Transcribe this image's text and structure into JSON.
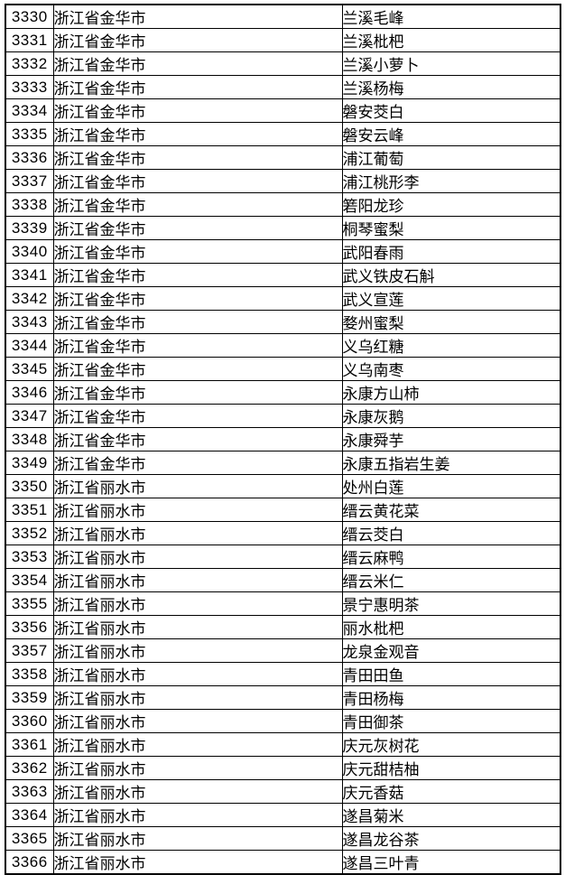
{
  "colors": {
    "background": "#ffffff",
    "border": "#000000",
    "text": "#000000"
  },
  "table": {
    "rows": [
      {
        "no": "3330",
        "region": "浙江省金华市",
        "product": "兰溪毛峰"
      },
      {
        "no": "3331",
        "region": "浙江省金华市",
        "product": "兰溪枇杷"
      },
      {
        "no": "3332",
        "region": "浙江省金华市",
        "product": "兰溪小萝卜"
      },
      {
        "no": "3333",
        "region": "浙江省金华市",
        "product": "兰溪杨梅"
      },
      {
        "no": "3334",
        "region": "浙江省金华市",
        "product": "磐安茭白"
      },
      {
        "no": "3335",
        "region": "浙江省金华市",
        "product": "磐安云峰"
      },
      {
        "no": "3336",
        "region": "浙江省金华市",
        "product": "浦江葡萄"
      },
      {
        "no": "3337",
        "region": "浙江省金华市",
        "product": "浦江桃形李"
      },
      {
        "no": "3338",
        "region": "浙江省金华市",
        "product": "箬阳龙珍"
      },
      {
        "no": "3339",
        "region": "浙江省金华市",
        "product": "桐琴蜜梨"
      },
      {
        "no": "3340",
        "region": "浙江省金华市",
        "product": "武阳春雨"
      },
      {
        "no": "3341",
        "region": "浙江省金华市",
        "product": "武义铁皮石斛"
      },
      {
        "no": "3342",
        "region": "浙江省金华市",
        "product": "武义宣莲"
      },
      {
        "no": "3343",
        "region": "浙江省金华市",
        "product": "婺州蜜梨"
      },
      {
        "no": "3344",
        "region": "浙江省金华市",
        "product": "义乌红糖"
      },
      {
        "no": "3345",
        "region": "浙江省金华市",
        "product": "义乌南枣"
      },
      {
        "no": "3346",
        "region": "浙江省金华市",
        "product": "永康方山柿"
      },
      {
        "no": "3347",
        "region": "浙江省金华市",
        "product": "永康灰鹅"
      },
      {
        "no": "3348",
        "region": "浙江省金华市",
        "product": "永康舜芋"
      },
      {
        "no": "3349",
        "region": "浙江省金华市",
        "product": "永康五指岩生姜"
      },
      {
        "no": "3350",
        "region": "浙江省丽水市",
        "product": "处州白莲"
      },
      {
        "no": "3351",
        "region": "浙江省丽水市",
        "product": "缙云黄花菜"
      },
      {
        "no": "3352",
        "region": "浙江省丽水市",
        "product": "缙云茭白"
      },
      {
        "no": "3353",
        "region": "浙江省丽水市",
        "product": "缙云麻鸭"
      },
      {
        "no": "3354",
        "region": "浙江省丽水市",
        "product": "缙云米仁"
      },
      {
        "no": "3355",
        "region": "浙江省丽水市",
        "product": "景宁惠明茶"
      },
      {
        "no": "3356",
        "region": "浙江省丽水市",
        "product": "丽水枇杷"
      },
      {
        "no": "3357",
        "region": "浙江省丽水市",
        "product": "龙泉金观音"
      },
      {
        "no": "3358",
        "region": "浙江省丽水市",
        "product": "青田田鱼"
      },
      {
        "no": "3359",
        "region": "浙江省丽水市",
        "product": "青田杨梅"
      },
      {
        "no": "3360",
        "region": "浙江省丽水市",
        "product": "青田御茶"
      },
      {
        "no": "3361",
        "region": "浙江省丽水市",
        "product": "庆元灰树花"
      },
      {
        "no": "3362",
        "region": "浙江省丽水市",
        "product": "庆元甜桔柚"
      },
      {
        "no": "3363",
        "region": "浙江省丽水市",
        "product": "庆元香菇"
      },
      {
        "no": "3364",
        "region": "浙江省丽水市",
        "product": "遂昌菊米"
      },
      {
        "no": "3365",
        "region": "浙江省丽水市",
        "product": "遂昌龙谷茶"
      },
      {
        "no": "3366",
        "region": "浙江省丽水市",
        "product": "遂昌三叶青"
      }
    ]
  }
}
